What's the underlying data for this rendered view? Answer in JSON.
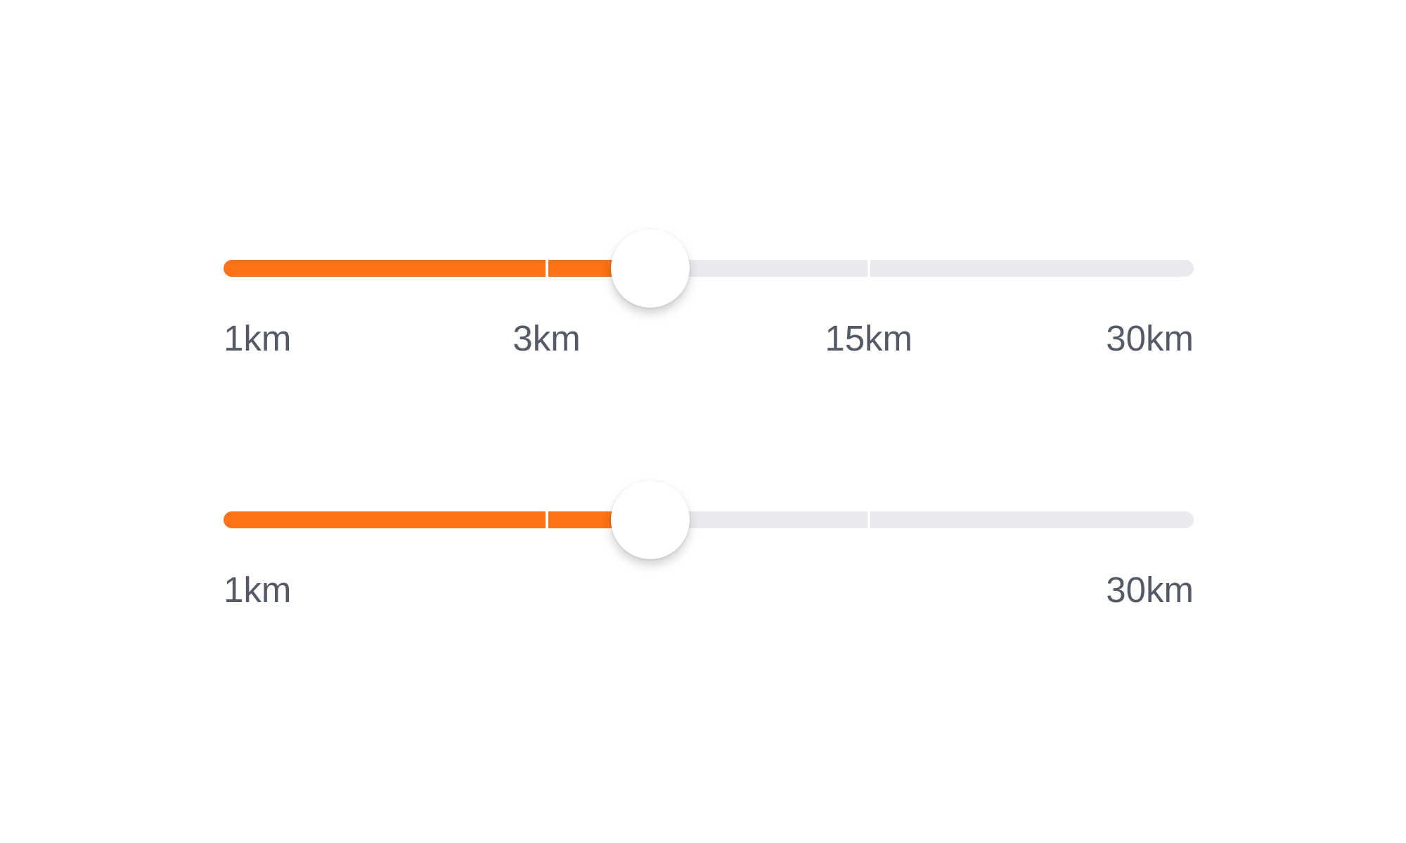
{
  "colors": {
    "accent": "#fd7215",
    "track": "#e9eaee",
    "label": "#555a66",
    "thumb": "#ffffff"
  },
  "sliders": [
    {
      "value_fraction": 0.44,
      "tick_fractions": [
        0.333,
        0.665
      ],
      "labels": [
        {
          "text": "1km",
          "fraction": 0,
          "align": "left"
        },
        {
          "text": "3km",
          "fraction": 0.333,
          "align": "center"
        },
        {
          "text": "15km",
          "fraction": 0.665,
          "align": "center"
        },
        {
          "text": "30km",
          "fraction": 1,
          "align": "right"
        }
      ]
    },
    {
      "value_fraction": 0.44,
      "tick_fractions": [
        0.333,
        0.665
      ],
      "labels": [
        {
          "text": "1km",
          "fraction": 0,
          "align": "left"
        },
        {
          "text": "30km",
          "fraction": 1,
          "align": "right"
        }
      ]
    }
  ]
}
